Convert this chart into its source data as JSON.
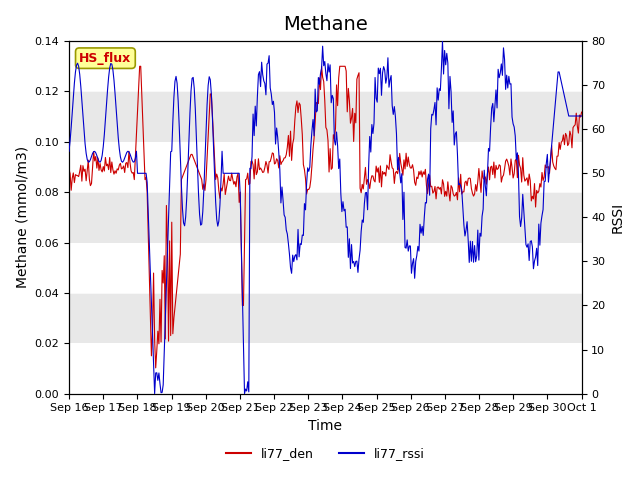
{
  "title": "Methane",
  "xlabel": "Time",
  "ylabel_left": "Methane (mmol/m3)",
  "ylabel_right": "RSSI",
  "ylim_left": [
    0.0,
    0.14
  ],
  "ylim_right": [
    0,
    80
  ],
  "yticks_left": [
    0.0,
    0.02,
    0.04,
    0.06,
    0.08,
    0.1,
    0.12,
    0.14
  ],
  "yticks_right": [
    0,
    10,
    20,
    30,
    40,
    50,
    60,
    70,
    80
  ],
  "x_tick_labels": [
    "Sep 16",
    "Sep 17",
    "Sep 18",
    "Sep 19",
    "Sep 20",
    "Sep 21",
    "Sep 22",
    "Sep 23",
    "Sep 24",
    "Sep 25",
    "Sep 26",
    "Sep 27",
    "Sep 28",
    "Sep 29",
    "Sep 30",
    "Oct 1"
  ],
  "color_den": "#cc0000",
  "color_rssi": "#0000cc",
  "legend_den": "li77_den",
  "legend_rssi": "li77_rssi",
  "annotation_text": "HS_flux",
  "annotation_color": "#cc0000",
  "annotation_bg": "#ffff99",
  "annotation_border": "#999900",
  "bg_color": "#e8e8e8",
  "stripe_color": "#d0d0d0",
  "grid_color": "#ffffff",
  "title_fontsize": 14,
  "axis_fontsize": 10,
  "tick_fontsize": 8
}
